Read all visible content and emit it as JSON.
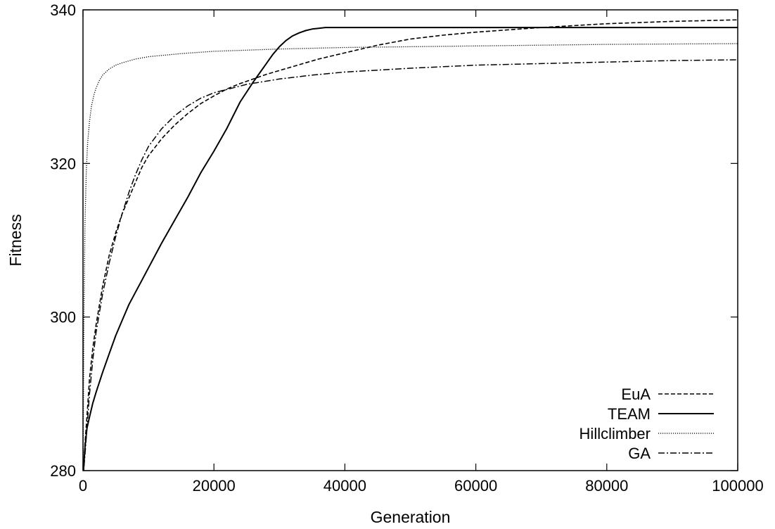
{
  "chart_data": {
    "type": "line",
    "title": "",
    "xlabel": "Generation",
    "ylabel": "Fitness",
    "xlim": [
      0,
      100000
    ],
    "ylim": [
      280,
      340
    ],
    "xticks": [
      0,
      20000,
      40000,
      60000,
      80000,
      100000
    ],
    "yticks": [
      280,
      300,
      320,
      340
    ],
    "grid": false,
    "legend_position": "bottom-right",
    "series": [
      {
        "name": "EuA",
        "dash": "dashed",
        "x": [
          0,
          300,
          600,
          1000,
          1500,
          2000,
          3000,
          4000,
          5000,
          6000,
          7000,
          8000,
          9000,
          10000,
          12000,
          14000,
          16000,
          18000,
          20000,
          22000,
          24000,
          26000,
          28000,
          30000,
          32000,
          34000,
          36000,
          38000,
          40000,
          45000,
          50000,
          55000,
          60000,
          70000,
          80000,
          90000,
          100000
        ],
        "y": [
          279,
          283.5,
          287,
          292,
          296,
          299,
          304,
          308,
          311,
          313.5,
          315.5,
          317.5,
          319.5,
          321,
          323.2,
          325,
          326.5,
          327.8,
          328.8,
          329.7,
          330.4,
          331,
          331.6,
          332.1,
          332.6,
          333.1,
          333.6,
          334.0,
          334.4,
          335.4,
          336.2,
          336.7,
          337.1,
          337.7,
          338.2,
          338.5,
          338.7
        ]
      },
      {
        "name": "TEAM",
        "dash": "solid",
        "x": [
          0,
          300,
          600,
          1000,
          1500,
          2000,
          3000,
          4000,
          5000,
          6000,
          7000,
          8000,
          9000,
          10000,
          12000,
          14000,
          16000,
          18000,
          20000,
          22000,
          24000,
          26000,
          27000,
          28000,
          29000,
          30000,
          31000,
          32000,
          33000,
          34000,
          35000,
          36000,
          37000,
          38000,
          40000,
          60000,
          80000,
          100000
        ],
        "y": [
          279,
          283,
          285.5,
          287,
          288.8,
          290.2,
          292.8,
          295.2,
          297.6,
          299.6,
          301.6,
          303.2,
          304.8,
          306.4,
          309.6,
          312.6,
          315.6,
          318.8,
          321.6,
          324.6,
          328,
          330.6,
          331.8,
          333,
          334.2,
          335.2,
          336,
          336.6,
          337,
          337.3,
          337.5,
          337.6,
          337.7,
          337.7,
          337.7,
          337.7,
          337.7,
          337.7
        ]
      },
      {
        "name": "Hillclimber",
        "dash": "dotted",
        "x": [
          0,
          150,
          300,
          500,
          700,
          1000,
          1300,
          1700,
          2000,
          2500,
          3000,
          4000,
          5000,
          6000,
          8000,
          10000,
          15000,
          20000,
          30000,
          40000,
          60000,
          80000,
          100000
        ],
        "y": [
          279,
          300,
          312,
          319,
          322.5,
          325.5,
          327.5,
          329,
          329.8,
          330.8,
          331.5,
          332.3,
          332.8,
          333.1,
          333.6,
          333.9,
          334.3,
          334.6,
          334.9,
          335.1,
          335.3,
          335.5,
          335.6
        ]
      },
      {
        "name": "GA",
        "dash": "dashdot",
        "x": [
          0,
          300,
          600,
          1000,
          1500,
          2000,
          3000,
          4000,
          5000,
          6000,
          7000,
          8000,
          9000,
          10000,
          12000,
          14000,
          16000,
          18000,
          20000,
          25000,
          30000,
          35000,
          40000,
          50000,
          60000,
          70000,
          80000,
          90000,
          100000
        ],
        "y": [
          279,
          282,
          285.5,
          290,
          294.5,
          298,
          303,
          307,
          310.5,
          313.5,
          316.2,
          318.5,
          320.5,
          322.2,
          324.5,
          326.2,
          327.5,
          328.5,
          329.2,
          330.3,
          331,
          331.5,
          331.9,
          332.4,
          332.8,
          333,
          333.2,
          333.4,
          333.5
        ]
      }
    ]
  }
}
